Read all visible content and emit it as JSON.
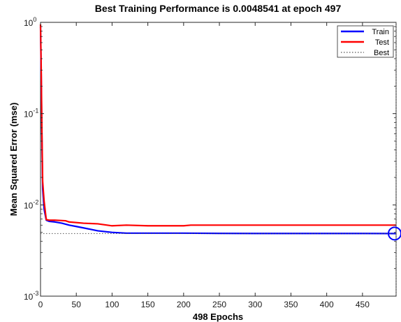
{
  "chart_data": {
    "type": "line",
    "title": "Best Training Performance is 0.0048541 at epoch 497",
    "xlabel": "498 Epochs",
    "ylabel": "Mean Squared Error  (mse)",
    "xlim": [
      0,
      497
    ],
    "ylim": [
      0.001,
      1
    ],
    "yscale": "log",
    "x_ticks": [
      0,
      50,
      100,
      150,
      200,
      250,
      300,
      350,
      400,
      450
    ],
    "y_ticks": [
      {
        "value": 0.001,
        "base": "10",
        "exp": "-3"
      },
      {
        "value": 0.01,
        "base": "10",
        "exp": "-2"
      },
      {
        "value": 0.1,
        "base": "10",
        "exp": "-1"
      },
      {
        "value": 1,
        "base": "10",
        "exp": "0"
      }
    ],
    "grid": false,
    "legend_position": "top-right",
    "series": [
      {
        "name": "Train",
        "color": "#0000ff",
        "x": [
          0,
          1,
          2,
          3,
          5,
          8,
          12,
          20,
          30,
          40,
          50,
          60,
          70,
          80,
          100,
          120,
          150,
          200,
          250,
          300,
          350,
          400,
          450,
          497
        ],
        "y": [
          0.9,
          0.25,
          0.05,
          0.015,
          0.009,
          0.0068,
          0.0066,
          0.0065,
          0.0063,
          0.006,
          0.0058,
          0.0056,
          0.0054,
          0.0052,
          0.005,
          0.0049,
          0.0049,
          0.0049,
          0.00487,
          0.00486,
          0.00486,
          0.00486,
          0.00486,
          0.0048541
        ]
      },
      {
        "name": "Test",
        "color": "#ff0000",
        "x": [
          0,
          1,
          2,
          3,
          5,
          8,
          12,
          20,
          35,
          40,
          60,
          80,
          100,
          120,
          150,
          180,
          200,
          210,
          250,
          300,
          350,
          400,
          450,
          497
        ],
        "y": [
          0.95,
          0.3,
          0.06,
          0.018,
          0.011,
          0.0069,
          0.0068,
          0.0068,
          0.0067,
          0.0065,
          0.0063,
          0.0062,
          0.0059,
          0.006,
          0.0059,
          0.0059,
          0.0059,
          0.006,
          0.006,
          0.006,
          0.006,
          0.006,
          0.006,
          0.006
        ]
      }
    ],
    "best": {
      "name": "Best",
      "epoch": 497,
      "value": 0.0048541,
      "color": "#0000ff",
      "line_color": "#555555"
    }
  }
}
